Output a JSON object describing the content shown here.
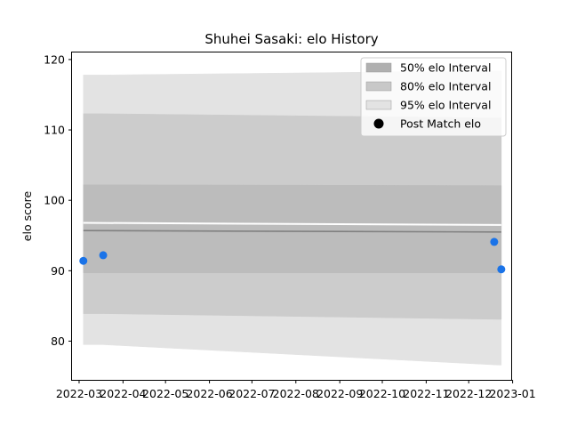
{
  "chart_data": {
    "type": "area",
    "title": "Shuhei Sasaki: elo History",
    "xlabel": "",
    "ylabel": "elo score",
    "xlim": [
      "2022-02-24",
      "2022-12-31"
    ],
    "ylim": [
      74.5,
      121
    ],
    "grid": false,
    "legend_position": "top-right",
    "x_ticks": [
      "2022-03",
      "2022-04",
      "2022-05",
      "2022-06",
      "2022-07",
      "2022-08",
      "2022-09",
      "2022-10",
      "2022-11",
      "2022-12",
      "2023-01"
    ],
    "y_ticks": [
      80,
      90,
      100,
      110,
      120
    ],
    "legend": [
      {
        "label": "50% elo Interval",
        "color": "#b0b0b0",
        "kind": "patch"
      },
      {
        "label": "80% elo Interval",
        "color": "#c8c8c8",
        "kind": "patch"
      },
      {
        "label": "95% elo Interval",
        "color": "#e3e3e3",
        "kind": "patch"
      },
      {
        "label": "Post Match elo",
        "color": "#000000",
        "kind": "marker"
      }
    ],
    "bands": [
      {
        "name": "95% elo Interval",
        "color": "#e3e3e3",
        "x": [
          "2022-03-04",
          "2022-03-18",
          "2022-12-22",
          "2022-12-24"
        ],
        "upper": [
          117.8,
          117.8,
          118.4,
          118.4
        ],
        "lower": [
          79.5,
          79.5,
          76.6,
          76.6
        ]
      },
      {
        "name": "80% elo Interval",
        "color": "#cccccc",
        "x": [
          "2022-03-04",
          "2022-03-18",
          "2022-12-22",
          "2022-12-24"
        ],
        "upper": [
          112.3,
          112.3,
          111.7,
          111.7
        ],
        "lower": [
          83.9,
          83.9,
          83.1,
          83.1
        ]
      },
      {
        "name": "50% elo Interval",
        "color": "#bcbcbc",
        "x": [
          "2022-03-04",
          "2022-03-18",
          "2022-12-22",
          "2022-12-24"
        ],
        "upper": [
          102.2,
          102.2,
          102.1,
          102.1
        ],
        "lower": [
          89.7,
          89.7,
          89.7,
          89.7
        ]
      }
    ],
    "mean_line": {
      "x": [
        "2022-03-04",
        "2022-12-24"
      ],
      "y": [
        95.7,
        95.5
      ],
      "color": "#808080"
    },
    "upper_line": {
      "x": [
        "2022-03-04",
        "2022-12-24"
      ],
      "y": [
        96.8,
        96.5
      ],
      "color": "#ffffff"
    },
    "points": {
      "name": "Post Match elo",
      "color": "#1a73e8",
      "x": [
        "2022-03-04",
        "2022-03-18",
        "2022-12-19",
        "2022-12-24"
      ],
      "y": [
        91.4,
        92.2,
        94.1,
        90.2
      ]
    }
  }
}
